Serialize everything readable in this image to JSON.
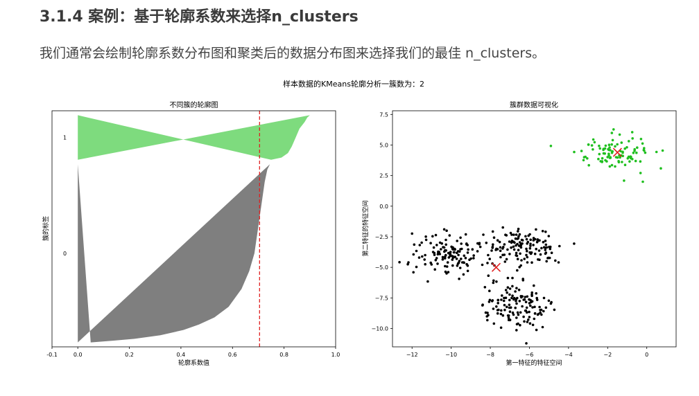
{
  "header": {
    "title": "3.1.4 案例：基于轮廓系数来选择n_clusters",
    "intro": "我们通常会绘制轮廓系数分布图和聚类后的数据分布图来选择我们的最佳 n_clusters。"
  },
  "figure": {
    "suptitle": "样本数据的KMeans轮廓分析一簇数为：2"
  },
  "chart_data": [
    {
      "type": "area",
      "title": "不同簇的轮廓图",
      "xlabel": "轮廓系数值",
      "ylabel": "簇的标签",
      "xlim": [
        -0.1,
        1.0
      ],
      "xticks": [
        -0.1,
        0.0,
        0.2,
        0.4,
        0.6,
        0.8,
        1.0
      ],
      "xtick_labels": [
        "-0.1",
        "0.0",
        "0.2",
        "0.4",
        "0.6",
        "0.8",
        "1.0"
      ],
      "cluster_labels": [
        "0",
        "1"
      ],
      "average_silhouette": 0.705,
      "avg_line_color": "#e02020",
      "grid": false,
      "series": [
        {
          "cluster": "0",
          "color": "#7f7f7f",
          "size": 400,
          "sorted_coefficient_profile": [
            [
              0.0,
              0.745
            ],
            [
              0.03,
              0.735
            ],
            [
              0.1,
              0.725
            ],
            [
              0.2,
              0.715
            ],
            [
              0.3,
              0.705
            ],
            [
              0.4,
              0.695
            ],
            [
              0.5,
              0.685
            ],
            [
              0.6,
              0.665
            ],
            [
              0.7,
              0.635
            ],
            [
              0.8,
              0.585
            ],
            [
              0.86,
              0.53
            ],
            [
              0.9,
              0.47
            ],
            [
              0.93,
              0.41
            ],
            [
              0.96,
              0.32
            ],
            [
              0.98,
              0.22
            ],
            [
              0.99,
              0.14
            ],
            [
              1.0,
              0.05
            ]
          ]
        },
        {
          "cluster": "1",
          "color": "#7edb7e",
          "size": 100,
          "sorted_coefficient_profile": [
            [
              0.0,
              0.9
            ],
            [
              0.05,
              0.89
            ],
            [
              0.15,
              0.88
            ],
            [
              0.3,
              0.86
            ],
            [
              0.5,
              0.845
            ],
            [
              0.7,
              0.83
            ],
            [
              0.85,
              0.815
            ],
            [
              0.95,
              0.79
            ],
            [
              1.0,
              0.75
            ]
          ]
        }
      ]
    },
    {
      "type": "scatter",
      "title": "簇群数据可视化",
      "xlabel": "第一特征的特征空间",
      "ylabel": "第二特征的特征空间",
      "xlim": [
        -13.0,
        1.5
      ],
      "ylim": [
        -11.5,
        7.8
      ],
      "xticks": [
        -12,
        -10,
        -8,
        -6,
        -4,
        -2,
        0
      ],
      "xtick_labels": [
        "−12",
        "−10",
        "−8",
        "−6",
        "−4",
        "−2",
        "0"
      ],
      "yticks": [
        -10.0,
        -7.5,
        -5.0,
        -2.5,
        0.0,
        2.5,
        5.0,
        7.5
      ],
      "ytick_labels": [
        "−10.0",
        "−7.5",
        "−5.0",
        "−2.5",
        "0.0",
        "2.5",
        "5.0",
        "7.5"
      ],
      "grid": false,
      "series": [
        {
          "cluster": "0",
          "color": "#000000",
          "size": 400,
          "visual_groups": [
            {
              "center": [
                -10.0,
                -3.8
              ],
              "spread": [
                1.0,
                0.85
              ],
              "count": 135
            },
            {
              "center": [
                -6.3,
                -3.4
              ],
              "spread": [
                0.95,
                0.8
              ],
              "count": 130
            },
            {
              "center": [
                -6.8,
                -8.2
              ],
              "spread": [
                0.9,
                0.9
              ],
              "count": 135
            }
          ]
        },
        {
          "cluster": "1",
          "color": "#1fbf1f",
          "size": 100,
          "visual_groups": [
            {
              "center": [
                -1.6,
                4.4
              ],
              "spread": [
                0.95,
                0.75
              ],
              "count": 100
            }
          ]
        }
      ],
      "centers": [
        {
          "x": -7.7,
          "y": -5.0,
          "color": "#e02020",
          "marker": "x"
        },
        {
          "x": -1.5,
          "y": 4.4,
          "color": "#e02020",
          "marker": "x"
        }
      ]
    }
  ]
}
